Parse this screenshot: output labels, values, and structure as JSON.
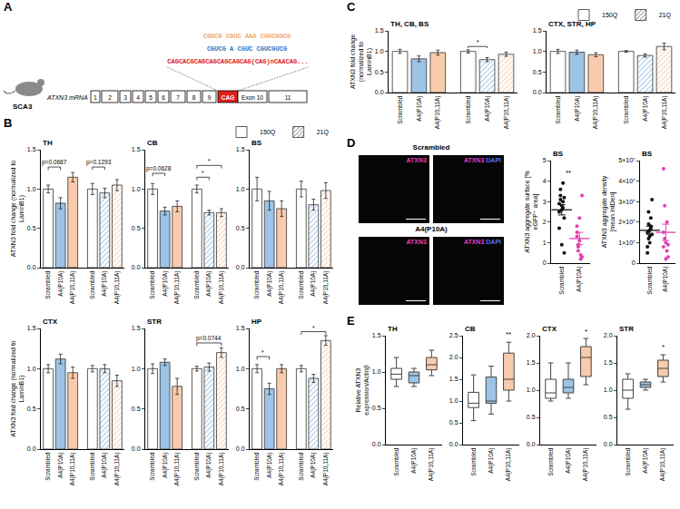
{
  "panels": [
    "A",
    "B",
    "C",
    "D",
    "E"
  ],
  "diagram": {
    "model": "SCA3",
    "transcript": "ATXN3 mRNA",
    "exons": [
      "1",
      "2",
      "3",
      "4",
      "5",
      "6",
      "7",
      "8",
      "9"
    ],
    "repeat": "CAG",
    "exon10": "Exon 10",
    "exon11": "11",
    "target": "CAGCACGCAGCAGCAGCAGCAG(CAG)nCAACAG...",
    "oligo_1": "CGUCG CGUC AAA CGUCGUCG",
    "oligo_2": "CGUCG A CGUC CGUCGUCG",
    "oligo_1_color": "#f0a868",
    "oligo_2_color": "#2e75c8",
    "target_color": "#e0201b"
  },
  "microscopy": {
    "conditions": [
      "Scrambled",
      "A4(P10A)"
    ],
    "channels": [
      [
        "ATXN3"
      ],
      [
        "ATXN3",
        "DAPI"
      ]
    ],
    "channel_colors": {
      "ATXN3": "#e040c0",
      "DAPI": "#5070ff"
    }
  },
  "chart_data": [
    {
      "panel": "B",
      "type": "bar",
      "title": "TH",
      "categories": [
        "Scrambled",
        "A4(P10A)",
        "A4(P10,11A)"
      ],
      "colors": [
        "#ffffff",
        "#9dc3e6",
        "#f8cbad"
      ],
      "series": [
        {
          "name": "150Q",
          "marker": "solid",
          "values": [
            1.0,
            0.82,
            1.15
          ],
          "error": [
            0.05,
            0.07,
            0.06
          ]
        },
        {
          "name": "21Q",
          "marker": "hatched",
          "values": [
            1.0,
            0.95,
            1.05
          ],
          "error": [
            0.07,
            0.06,
            0.07
          ]
        }
      ],
      "ylim": [
        0,
        1.5
      ],
      "yticks": [
        {
          "value": 0,
          "label": "0.0"
        },
        {
          "value": 0.5,
          "label": "0.5"
        },
        {
          "value": 1,
          "label": "1.0"
        },
        {
          "value": 1.5,
          "label": "1.5"
        }
      ],
      "ylabel": "ATXN3 fold change (normalized to LaminB1)",
      "legend": "top right",
      "annotations": [
        {
          "text": "p=0.0687",
          "series": 0,
          "from": 0,
          "to": 1,
          "y": 1.28
        },
        {
          "text": "p=0.1293",
          "series": 1,
          "from": 0,
          "to": 1,
          "y": 1.28
        }
      ]
    },
    {
      "panel": "B",
      "type": "bar",
      "title": "CB",
      "categories": [
        "Scrambled",
        "A4(P10A)",
        "A4(P10,11A)"
      ],
      "colors": [
        "#ffffff",
        "#9dc3e6",
        "#f8cbad"
      ],
      "series": [
        {
          "marker": "solid",
          "values": [
            1.0,
            0.72,
            0.78
          ],
          "error": [
            0.07,
            0.05,
            0.07
          ]
        },
        {
          "marker": "hatched",
          "values": [
            1.0,
            0.7,
            0.7
          ],
          "error": [
            0.05,
            0.03,
            0.05
          ]
        }
      ],
      "ylim": [
        0,
        1.5
      ],
      "yticks": [
        {
          "value": 0,
          "label": "0.0"
        },
        {
          "value": 0.5,
          "label": "0.5"
        },
        {
          "value": 1,
          "label": "1.0"
        },
        {
          "value": 1.5,
          "label": "1.5"
        }
      ],
      "annotations": [
        {
          "text": "p=0.0628",
          "series": 0,
          "from": 0,
          "to": 1,
          "y": 1.2
        },
        {
          "text": "*",
          "series": 1,
          "from": 0,
          "to": 1,
          "y": 1.15
        },
        {
          "text": "*",
          "series": 1,
          "from": 0,
          "to": 2,
          "y": 1.3
        }
      ]
    },
    {
      "panel": "B",
      "type": "bar",
      "title": "BS",
      "categories": [
        "Scrambled",
        "A4(P10A)",
        "A4(P10,11A)"
      ],
      "colors": [
        "#ffffff",
        "#9dc3e6",
        "#f8cbad"
      ],
      "series": [
        {
          "marker": "solid",
          "values": [
            1.0,
            0.85,
            0.75
          ],
          "error": [
            0.15,
            0.12,
            0.1
          ]
        },
        {
          "marker": "hatched",
          "values": [
            1.0,
            0.8,
            0.98
          ],
          "error": [
            0.1,
            0.07,
            0.1
          ]
        }
      ],
      "ylim": [
        0,
        1.5
      ],
      "yticks": [
        {
          "value": 0,
          "label": "0.0"
        },
        {
          "value": 0.5,
          "label": "0.5"
        },
        {
          "value": 1,
          "label": "1.0"
        },
        {
          "value": 1.5,
          "label": "1.5"
        }
      ]
    },
    {
      "panel": "B",
      "type": "bar",
      "title": "CTX",
      "categories": [
        "Scrambled",
        "A4(P10A)",
        "A4(P10,11A)"
      ],
      "colors": [
        "#ffffff",
        "#9dc3e6",
        "#f8cbad"
      ],
      "series": [
        {
          "marker": "solid",
          "values": [
            1.0,
            1.12,
            0.95
          ],
          "error": [
            0.05,
            0.06,
            0.07
          ]
        },
        {
          "marker": "hatched",
          "values": [
            1.0,
            1.0,
            0.85
          ],
          "error": [
            0.04,
            0.05,
            0.07
          ]
        }
      ],
      "ylim": [
        0,
        1.5
      ],
      "yticks": [
        {
          "value": 0,
          "label": "0.0"
        },
        {
          "value": 0.5,
          "label": "0.5"
        },
        {
          "value": 1,
          "label": "1.0"
        },
        {
          "value": 1.5,
          "label": "1.5"
        }
      ],
      "ylabel": "ATXN3 fold change (normalized to LaminB1)"
    },
    {
      "panel": "B",
      "type": "bar",
      "title": "STR",
      "categories": [
        "Scrambled",
        "A4(P10A)",
        "A4(P10,11A)"
      ],
      "colors": [
        "#ffffff",
        "#9dc3e6",
        "#f8cbad"
      ],
      "series": [
        {
          "marker": "solid",
          "values": [
            1.0,
            1.08,
            0.78
          ],
          "error": [
            0.06,
            0.04,
            0.1
          ]
        },
        {
          "marker": "hatched",
          "values": [
            1.0,
            1.02,
            1.2
          ],
          "error": [
            0.03,
            0.05,
            0.06
          ]
        }
      ],
      "ylim": [
        0,
        1.5
      ],
      "yticks": [
        {
          "value": 0,
          "label": "0.0"
        },
        {
          "value": 0.5,
          "label": "0.5"
        },
        {
          "value": 1,
          "label": "1.0"
        },
        {
          "value": 1.5,
          "label": "1.5"
        }
      ],
      "annotations": [
        {
          "text": "p=0.0744",
          "series": 1,
          "from": 0,
          "to": 2,
          "y": 1.32
        }
      ]
    },
    {
      "panel": "B",
      "type": "bar",
      "title": "HP",
      "categories": [
        "Scrambled",
        "A4(P10A)",
        "A4(P10,11A)"
      ],
      "colors": [
        "#ffffff",
        "#9dc3e6",
        "#f8cbad"
      ],
      "series": [
        {
          "marker": "solid",
          "values": [
            1.0,
            0.75,
            1.0
          ],
          "error": [
            0.05,
            0.07,
            0.05
          ]
        },
        {
          "marker": "hatched",
          "values": [
            1.0,
            0.88,
            1.35
          ],
          "error": [
            0.04,
            0.05,
            0.06
          ]
        }
      ],
      "ylim": [
        0,
        1.5
      ],
      "yticks": [
        {
          "value": 0,
          "label": "0.0"
        },
        {
          "value": 0.5,
          "label": "0.5"
        },
        {
          "value": 1,
          "label": "1.0"
        },
        {
          "value": 1.5,
          "label": "1.5"
        }
      ],
      "annotations": [
        {
          "text": "*",
          "series": 0,
          "from": 0,
          "to": 1,
          "y": 1.15
        },
        {
          "text": "*",
          "series": 1,
          "from": 0,
          "to": 2,
          "y": 1.46
        }
      ]
    },
    {
      "panel": "C",
      "type": "bar",
      "title": "TH, CB, BS",
      "categories": [
        "Scrambled",
        "A4(P10A)",
        "A4(P10,11A)"
      ],
      "colors": [
        "#ffffff",
        "#9dc3e6",
        "#f8cbad"
      ],
      "series": [
        {
          "name": "150Q",
          "marker": "solid",
          "values": [
            1.0,
            0.82,
            0.97
          ],
          "error": [
            0.05,
            0.07,
            0.06
          ]
        },
        {
          "name": "21Q",
          "marker": "hatched",
          "values": [
            1.0,
            0.8,
            0.93
          ],
          "error": [
            0.04,
            0.05,
            0.05
          ]
        }
      ],
      "ylim": [
        0,
        1.5
      ],
      "yticks": [
        {
          "value": 0,
          "label": "0.0"
        },
        {
          "value": 0.5,
          "label": "0.5"
        },
        {
          "value": 1,
          "label": "1.0"
        },
        {
          "value": 1.5,
          "label": "1.5"
        }
      ],
      "ylabel": "ATXN3 fold change (normalized to LaminB1)",
      "legend": "top right",
      "annotations": [
        {
          "text": "*",
          "series": 1,
          "from": 0,
          "to": 1,
          "y": 1.12
        }
      ]
    },
    {
      "panel": "C",
      "type": "bar",
      "title": "CTX, STR, HP",
      "categories": [
        "Scrambled",
        "A4(P10A)",
        "A4(P10,11A)"
      ],
      "colors": [
        "#ffffff",
        "#9dc3e6",
        "#f8cbad"
      ],
      "series": [
        {
          "marker": "solid",
          "values": [
            1.0,
            0.98,
            0.92
          ],
          "error": [
            0.05,
            0.05,
            0.05
          ]
        },
        {
          "marker": "hatched",
          "values": [
            1.0,
            0.9,
            1.12
          ],
          "error": [
            0.02,
            0.04,
            0.08
          ]
        }
      ],
      "ylim": [
        0,
        1.5
      ],
      "yticks": [
        {
          "value": 0,
          "label": "0.0"
        },
        {
          "value": 0.5,
          "label": "0.5"
        },
        {
          "value": 1,
          "label": "1.0"
        },
        {
          "value": 1.5,
          "label": "1.5"
        }
      ]
    },
    {
      "panel": "D",
      "type": "scatter",
      "title": "BS",
      "categories": [
        "Scrambled",
        "A4(P10A)"
      ],
      "colors": [
        "#111111",
        "#e040b0"
      ],
      "values": [
        [
          2.9,
          3.1,
          2.6,
          3.9,
          2.2,
          1.7,
          3.3,
          2.8,
          3.0,
          0.5,
          2.5,
          3.6,
          0.9,
          2.7,
          3.2
        ],
        [
          1.8,
          0.9,
          2.2,
          0.4,
          0.3,
          1.5,
          0.6,
          1.1,
          0.2,
          3.3,
          1.3,
          0.8
        ]
      ],
      "means": [
        2.6,
        1.2
      ],
      "errors": [
        0.25,
        0.3
      ],
      "ylim": [
        0,
        5
      ],
      "yticks": [
        0,
        1,
        2,
        3,
        4,
        5
      ],
      "ylabel": "ATXN3 aggregate surface [% eGFP⁺ area]",
      "annotations": [
        {
          "text": "**",
          "x": 0.35,
          "y": 4.1
        }
      ]
    },
    {
      "panel": "D",
      "type": "scatter",
      "title": "BS",
      "categories": [
        "Scrambled",
        "A4(P10A)"
      ],
      "colors": [
        "#111111",
        "#e040b0"
      ],
      "values": [
        [
          15000000,
          25000000,
          10000000,
          18000000,
          31000000,
          8000000,
          12000000,
          16000000,
          22000000,
          14000000,
          5000000,
          19000000,
          13000000,
          17000000
        ],
        [
          46000000,
          28000000,
          10000000,
          6000000,
          3000000,
          8000000,
          12000000,
          2000000,
          20000000,
          9000000,
          15000000
        ]
      ],
      "means": [
        16000000,
        15000000
      ],
      "errors": [
        2000000,
        4000000
      ],
      "ylim": [
        0,
        50000000
      ],
      "yticks": [
        0,
        {
          "value": 10000000,
          "label": "1×10⁷"
        },
        {
          "value": 20000000,
          "label": "2×10⁷"
        },
        {
          "value": 30000000,
          "label": "3×10⁷"
        },
        {
          "value": 40000000,
          "label": "4×10⁷"
        },
        {
          "value": 50000000,
          "label": "5×10⁷"
        }
      ],
      "ylabel": "ATXN3 aggregate density [mean IntDen]"
    },
    {
      "panel": "E",
      "type": "box",
      "title": "TH",
      "categories": [
        "Scrambled",
        "A4(P10A)",
        "A4(P10,11A)"
      ],
      "colors": [
        "#ffffff",
        "#9dc3e6",
        "#f8cbad"
      ],
      "boxes": [
        {
          "min": 0.8,
          "q1": 0.9,
          "median": 0.97,
          "q3": 1.05,
          "max": 1.2
        },
        {
          "min": 0.8,
          "q1": 0.85,
          "median": 0.95,
          "q3": 1.0,
          "max": 1.05
        },
        {
          "min": 0.95,
          "q1": 1.03,
          "median": 1.1,
          "q3": 1.2,
          "max": 1.3
        }
      ],
      "ylim": [
        0,
        1.5
      ],
      "yticks": [
        {
          "value": 0,
          "label": "0.0"
        },
        {
          "value": 0.5,
          "label": "0.5"
        },
        {
          "value": 1,
          "label": "1.0"
        },
        {
          "value": 1.5,
          "label": "1.5"
        }
      ],
      "ylabel": "Relative ATXN3 expression/Actinβ"
    },
    {
      "panel": "E",
      "type": "box",
      "title": "CB",
      "categories": [
        "Scrambled",
        "A4(P10A)",
        "A4(P10,11A)"
      ],
      "colors": [
        "#ffffff",
        "#9dc3e6",
        "#f8cbad"
      ],
      "boxes": [
        {
          "min": 0.55,
          "q1": 0.85,
          "median": 0.95,
          "q3": 1.2,
          "max": 1.6
        },
        {
          "min": 0.7,
          "q1": 0.95,
          "median": 1.0,
          "q3": 1.55,
          "max": 1.8
        },
        {
          "min": 1.0,
          "q1": 1.25,
          "median": 1.5,
          "q3": 2.1,
          "max": 2.35
        }
      ],
      "ylim": [
        0,
        2.5
      ],
      "yticks": [
        {
          "value": 0,
          "label": "0.0"
        },
        {
          "value": 0.5,
          "label": "0.5"
        },
        {
          "value": 1,
          "label": "1.0"
        },
        {
          "value": 1.5,
          "label": "1.5"
        },
        {
          "value": 2,
          "label": "2.0"
        },
        {
          "value": 2.5,
          "label": "2.5"
        }
      ],
      "annotations": [
        {
          "text": "**",
          "x": 2,
          "y": 2.4
        }
      ]
    },
    {
      "panel": "E",
      "type": "box",
      "title": "CTX",
      "categories": [
        "Scrambled",
        "A4(P10A)",
        "A4(P10,11A)"
      ],
      "colors": [
        "#ffffff",
        "#9dc3e6",
        "#f8cbad"
      ],
      "boxes": [
        {
          "min": 0.8,
          "q1": 0.85,
          "median": 0.95,
          "q3": 1.2,
          "max": 1.5
        },
        {
          "min": 0.85,
          "q1": 0.95,
          "median": 1.05,
          "q3": 1.2,
          "max": 1.5
        },
        {
          "min": 1.1,
          "q1": 1.25,
          "median": 1.6,
          "q3": 1.8,
          "max": 1.95
        }
      ],
      "ylim": [
        0,
        2
      ],
      "yticks": [
        {
          "value": 0,
          "label": "0.0"
        },
        {
          "value": 0.5,
          "label": "0.5"
        },
        {
          "value": 1,
          "label": "1.0"
        },
        {
          "value": 1.5,
          "label": "1.5"
        },
        {
          "value": 2,
          "label": "2.0"
        }
      ],
      "annotations": [
        {
          "text": "*",
          "x": 2,
          "y": 1.97
        }
      ]
    },
    {
      "panel": "E",
      "type": "box",
      "title": "STR",
      "categories": [
        "Scrambled",
        "A4(P10A)",
        "A4(P10,11A)"
      ],
      "colors": [
        "#ffffff",
        "#9dc3e6",
        "#f8cbad"
      ],
      "boxes": [
        {
          "min": 0.65,
          "q1": 0.85,
          "median": 1.0,
          "q3": 1.2,
          "max": 1.3
        },
        {
          "min": 1.0,
          "q1": 1.05,
          "median": 1.1,
          "q3": 1.15,
          "max": 1.2
        },
        {
          "min": 1.15,
          "q1": 1.25,
          "median": 1.4,
          "q3": 1.55,
          "max": 1.65
        }
      ],
      "ylim": [
        0,
        2
      ],
      "yticks": [
        {
          "value": 0,
          "label": "0.0"
        },
        {
          "value": 0.5,
          "label": "0.5"
        },
        {
          "value": 1,
          "label": "1.0"
        },
        {
          "value": 1.5,
          "label": "1.5"
        },
        {
          "value": 2,
          "label": "2.0"
        }
      ],
      "annotations": [
        {
          "text": "*",
          "x": 2,
          "y": 1.68
        }
      ]
    }
  ]
}
